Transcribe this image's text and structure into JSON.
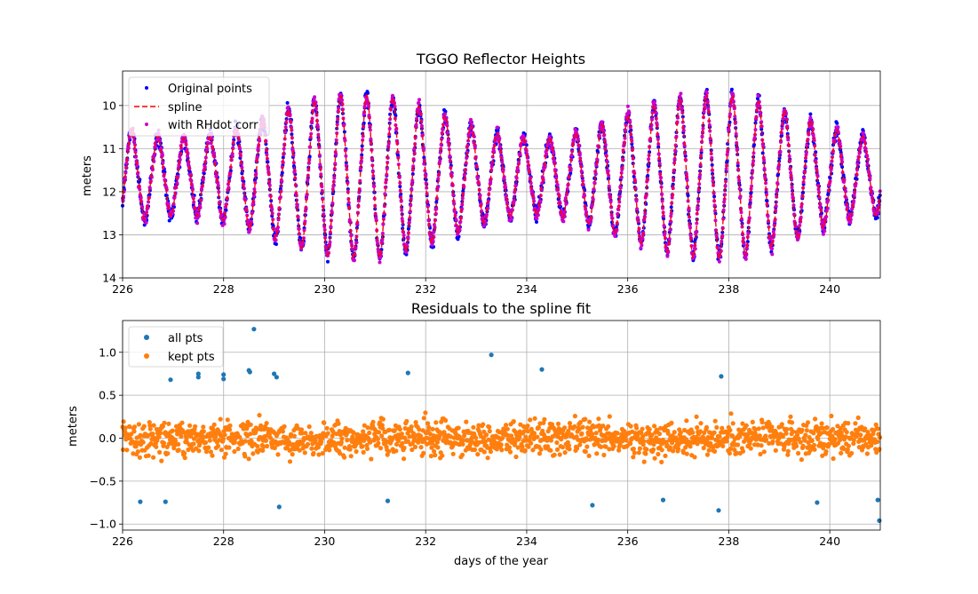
{
  "chart_data": [
    {
      "type": "scatter",
      "title": "TGGO Reflector Heights",
      "xlabel": "",
      "ylabel": "meters",
      "xlim": [
        226,
        241
      ],
      "ylim": [
        14,
        9.2
      ],
      "y_inverted": true,
      "grid": true,
      "legend_position": "upper-left",
      "x_ticks": [
        "226",
        "228",
        "230",
        "232",
        "234",
        "236",
        "238",
        "240"
      ],
      "y_ticks": [
        "10",
        "11",
        "12",
        "13",
        "14"
      ],
      "series": [
        {
          "name": "Original points",
          "marker": "dot",
          "color": "#0000ff"
        },
        {
          "name": "spline",
          "marker": "dashed-line",
          "color": "#ff0000"
        },
        {
          "name": "with RHdot corr",
          "marker": "dot",
          "color": "#cc00cc"
        }
      ],
      "wave": {
        "period_days": 0.517,
        "peak_day": 229.8,
        "mean_height": 11.65,
        "amplitude_min": 0.8,
        "amplitude_max": 1.7,
        "extreme_low_height": 13.8,
        "extreme_high_height": 9.35
      }
    },
    {
      "type": "scatter",
      "title": "Residuals to the spline fit",
      "xlabel": "days of the year",
      "ylabel": "meters",
      "xlim": [
        226,
        241
      ],
      "ylim": [
        -1.07,
        1.37
      ],
      "grid": true,
      "legend_position": "upper-left",
      "x_ticks": [
        "226",
        "228",
        "230",
        "232",
        "234",
        "236",
        "238",
        "240"
      ],
      "y_ticks": [
        "1.0",
        "0.5",
        "0.0",
        "−0.5",
        "−1.0"
      ],
      "series": [
        {
          "name": "all pts",
          "color": "#1f77b4"
        },
        {
          "name": "kept pts",
          "color": "#ff7f0e"
        }
      ],
      "kept_range": [
        -0.65,
        0.65
      ],
      "outliers": [
        {
          "x": 226.35,
          "y": -0.74
        },
        {
          "x": 226.85,
          "y": -0.74
        },
        {
          "x": 226.95,
          "y": 0.68
        },
        {
          "x": 227.5,
          "y": 0.75
        },
        {
          "x": 227.5,
          "y": 0.71
        },
        {
          "x": 228.0,
          "y": 0.74
        },
        {
          "x": 228.0,
          "y": 0.69
        },
        {
          "x": 228.5,
          "y": 0.79
        },
        {
          "x": 228.52,
          "y": 0.77
        },
        {
          "x": 228.6,
          "y": 1.27
        },
        {
          "x": 229.0,
          "y": 0.75
        },
        {
          "x": 229.05,
          "y": 0.71
        },
        {
          "x": 229.1,
          "y": -0.8
        },
        {
          "x": 231.25,
          "y": -0.73
        },
        {
          "x": 231.65,
          "y": 0.76
        },
        {
          "x": 233.3,
          "y": 0.97
        },
        {
          "x": 234.3,
          "y": 0.8
        },
        {
          "x": 235.3,
          "y": -0.78
        },
        {
          "x": 236.7,
          "y": -0.72
        },
        {
          "x": 237.8,
          "y": -0.84
        },
        {
          "x": 237.85,
          "y": 0.72
        },
        {
          "x": 239.75,
          "y": -0.75
        },
        {
          "x": 240.95,
          "y": -0.72
        },
        {
          "x": 240.98,
          "y": -0.96
        }
      ]
    }
  ]
}
